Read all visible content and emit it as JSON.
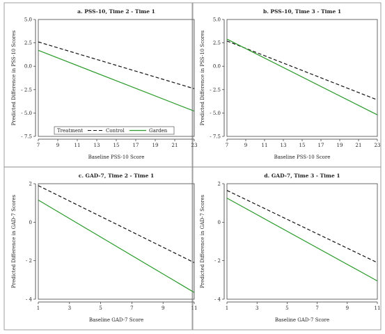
{
  "chart_data": [
    {
      "type": "line",
      "title": "a. PSS-10, Time 2 - Time 1",
      "xlabel": "Baseline PSS-10 Score",
      "ylabel": "Predicted Difference in PSS-10 Scores",
      "xlim": [
        7,
        23
      ],
      "ylim": [
        -7.5,
        5.0
      ],
      "xticks": [
        7,
        9,
        11,
        13,
        15,
        17,
        19,
        21,
        23
      ],
      "yticks": [
        -7.5,
        -5.0,
        -2.5,
        0.0,
        2.5,
        5.0
      ],
      "ytick_labels": [
        "- 7.5",
        "- 5.0",
        "- 2.5",
        "0.0",
        "2.5",
        "5.0"
      ],
      "series": [
        {
          "name": "Control",
          "x": [
            7,
            23
          ],
          "y": [
            2.6,
            -2.4
          ],
          "color": "#111111",
          "dash": "dashed"
        },
        {
          "name": "Garden",
          "x": [
            7,
            23
          ],
          "y": [
            1.7,
            -4.8
          ],
          "color": "#2a9a2a",
          "dash": "solid"
        }
      ],
      "legend": {
        "title": "Treatment",
        "placement": "bottom-left",
        "entries": [
          "Control",
          "Garden"
        ]
      },
      "grid": false
    },
    {
      "type": "line",
      "title": "b. PSS-10, Time 3 - Time 1",
      "xlabel": "Baseline PSS-10 Score",
      "ylabel": "Predicted Difference in PSS-10 Scores",
      "xlim": [
        7,
        23
      ],
      "ylim": [
        -7.5,
        5.0
      ],
      "xticks": [
        7,
        9,
        11,
        13,
        15,
        17,
        19,
        21,
        23
      ],
      "yticks": [
        -7.5,
        -5.0,
        -2.5,
        0.0,
        2.5,
        5.0
      ],
      "ytick_labels": [
        "- 7.5",
        "- 5.0",
        "- 2.5",
        "0.0",
        "2.5",
        "5.0"
      ],
      "series": [
        {
          "name": "Control",
          "x": [
            7,
            23
          ],
          "y": [
            2.7,
            -3.6
          ],
          "color": "#111111",
          "dash": "dashed"
        },
        {
          "name": "Garden",
          "x": [
            7,
            23
          ],
          "y": [
            2.9,
            -5.2
          ],
          "color": "#2a9a2a",
          "dash": "solid"
        }
      ],
      "grid": false
    },
    {
      "type": "line",
      "title": "c. GAD-7, Time 2 - Time 1",
      "xlabel": "Baseline GAD-7 Score",
      "ylabel": "Predicted Difference in GAD-7 Scores",
      "xlim": [
        1,
        11
      ],
      "ylim": [
        -4,
        2
      ],
      "xticks": [
        1,
        3,
        5,
        7,
        9,
        11
      ],
      "yticks": [
        -4,
        -2,
        0,
        2
      ],
      "ytick_labels": [
        "- 4",
        "- 2",
        "0",
        "2"
      ],
      "series": [
        {
          "name": "Control",
          "x": [
            1,
            11
          ],
          "y": [
            1.9,
            -2.1
          ],
          "color": "#111111",
          "dash": "dashed"
        },
        {
          "name": "Garden",
          "x": [
            1,
            11
          ],
          "y": [
            1.15,
            -3.65
          ],
          "color": "#2a9a2a",
          "dash": "solid"
        }
      ],
      "grid": false
    },
    {
      "type": "line",
      "title": "d. GAD-7, Time 3 - Time 1",
      "xlabel": "Baseline GAD-7 Score",
      "ylabel": "Predicted Difference in GAD-7 Scores",
      "xlim": [
        1,
        11
      ],
      "ylim": [
        -4,
        2
      ],
      "xticks": [
        1,
        3,
        5,
        7,
        9,
        11
      ],
      "yticks": [
        -4,
        -2,
        0,
        2
      ],
      "ytick_labels": [
        "- 4",
        "- 2",
        "0",
        "2"
      ],
      "series": [
        {
          "name": "Control",
          "x": [
            1,
            11
          ],
          "y": [
            1.65,
            -2.1
          ],
          "color": "#111111",
          "dash": "dashed"
        },
        {
          "name": "Garden",
          "x": [
            1,
            11
          ],
          "y": [
            1.25,
            -3.05
          ],
          "color": "#2a9a2a",
          "dash": "solid"
        }
      ],
      "grid": false
    }
  ]
}
